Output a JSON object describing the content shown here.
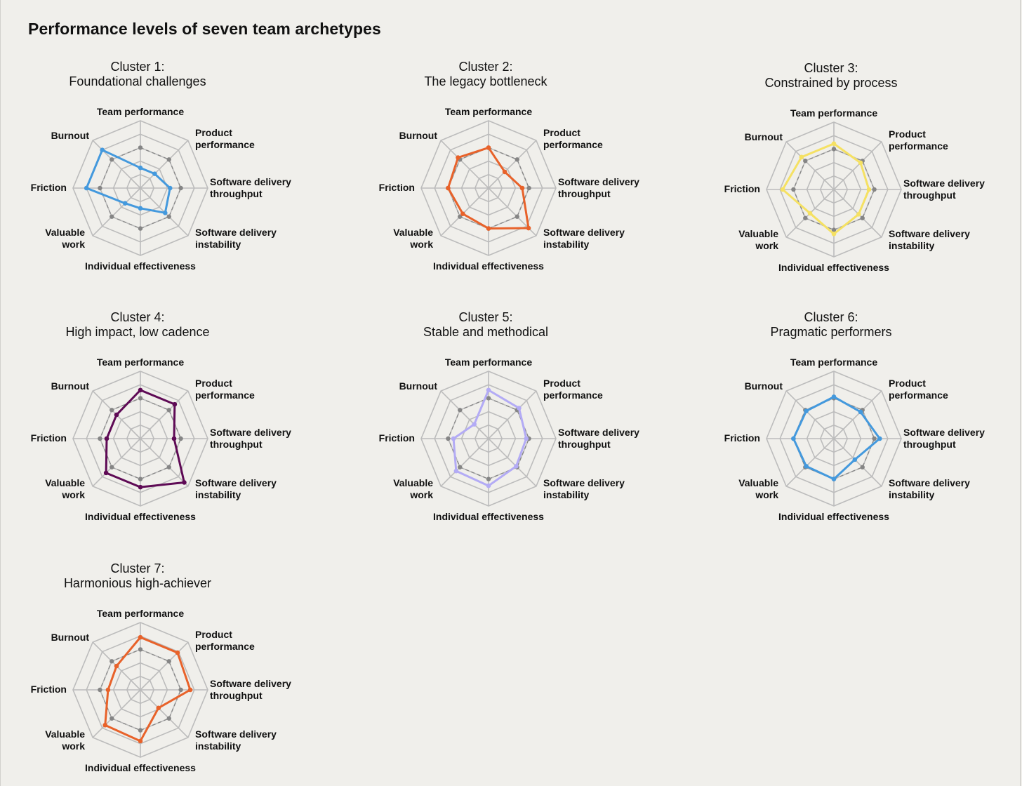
{
  "page": {
    "title": "Performance levels of seven team archetypes"
  },
  "axes": [
    "Team performance",
    "Product performance",
    "Software delivery throughput",
    "Software delivery instability",
    "Individual effectiveness",
    "Valuable work",
    "Friction",
    "Burnout"
  ],
  "reference_color": "#858585",
  "grid_color": "#bcbcbc",
  "chart_data": [
    {
      "type": "radar",
      "title_line1": "Cluster 1:",
      "title_line2": "Foundational challenges",
      "color": "#4499dd",
      "rmax": 5,
      "reference": [
        3,
        3,
        3,
        3,
        3,
        3,
        3,
        3
      ],
      "values": [
        1.5,
        1.5,
        2.2,
        2.6,
        1.5,
        1.6,
        4.0,
        4.0
      ]
    },
    {
      "type": "radar",
      "title_line1": "Cluster 2:",
      "title_line2": "The legacy bottleneck",
      "color": "#e8622a",
      "rmax": 5,
      "reference": [
        3,
        3,
        3,
        3,
        3,
        3,
        3,
        3
      ],
      "values": [
        3.0,
        1.7,
        2.5,
        4.2,
        3.0,
        2.7,
        3.0,
        3.2
      ]
    },
    {
      "type": "radar",
      "title_line1": "Cluster 3:",
      "title_line2": "Constrained by process",
      "color": "#f5e163",
      "rmax": 5,
      "reference": [
        3,
        3,
        3,
        3,
        3,
        3,
        3,
        3
      ],
      "values": [
        3.4,
        2.8,
        2.6,
        2.6,
        3.3,
        2.5,
        3.8,
        3.4
      ]
    },
    {
      "type": "radar",
      "title_line1": "Cluster 4:",
      "title_line2": "High impact, low cadence",
      "color": "#5e0a55",
      "rmax": 5,
      "reference": [
        3,
        3,
        3,
        3,
        3,
        3,
        3,
        3
      ],
      "values": [
        3.6,
        3.6,
        2.5,
        4.6,
        3.6,
        3.6,
        2.5,
        2.5
      ]
    },
    {
      "type": "radar",
      "title_line1": "Cluster 5:",
      "title_line2": "Stable and methodical",
      "color": "#b3abf5",
      "rmax": 5,
      "reference": [
        3,
        3,
        3,
        3,
        3,
        3,
        3,
        3
      ],
      "values": [
        3.6,
        3.2,
        2.8,
        2.9,
        3.5,
        3.4,
        2.6,
        1.5
      ]
    },
    {
      "type": "radar",
      "title_line1": "Cluster 6:",
      "title_line2": "Pragmatic performers",
      "color": "#4499dd",
      "rmax": 5,
      "reference": [
        3,
        3,
        3,
        3,
        3,
        3,
        3,
        3
      ],
      "values": [
        3.1,
        2.8,
        3.4,
        2.2,
        3.0,
        2.9,
        3.0,
        2.9
      ]
    },
    {
      "type": "radar",
      "title_line1": "Cluster 7:",
      "title_line2": "Harmonious high-achiever",
      "color": "#e8622a",
      "rmax": 5,
      "reference": [
        3,
        3,
        3,
        3,
        3,
        3,
        3,
        3
      ],
      "values": [
        3.9,
        3.9,
        3.7,
        1.9,
        3.8,
        3.7,
        2.4,
        2.5
      ]
    }
  ]
}
